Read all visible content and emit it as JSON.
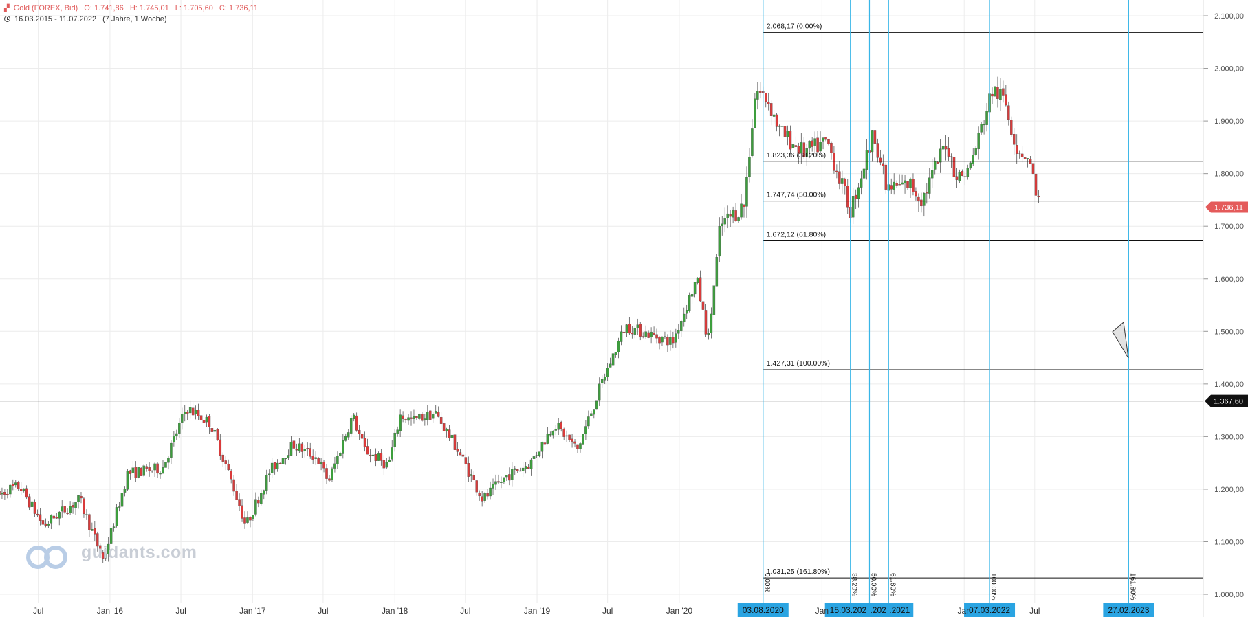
{
  "header": {
    "symbol": "Gold (FOREX, Bid)",
    "open": "O: 1.741,86",
    "high": "H: 1.745,01",
    "low": "L: 1.705,60",
    "close": "C: 1.736,11",
    "range": "16.03.2015 - 11.07.2022",
    "period": "(7 Jahre, 1 Woche)"
  },
  "watermark": "guidants.com",
  "colors": {
    "up": "#3d9e3d",
    "down": "#d93b3b",
    "fib_vertical": "#38b6e8",
    "date_label_bg": "#2aa4e2",
    "price_label": "#e45a5a",
    "grid": "#ececec"
  },
  "chart_data": {
    "type": "candlestick",
    "timeframe": "weekly",
    "date_range": [
      "16.03.2015",
      "11.07.2022"
    ],
    "ylim": [
      1000,
      2100
    ],
    "y_ticks": [
      "1.000,00",
      "1.100,00",
      "1.200,00",
      "1.300,00",
      "1.400,00",
      "1.500,00",
      "1.600,00",
      "1.700,00",
      "1.800,00",
      "1.900,00",
      "2.000,00",
      "2.100,00"
    ],
    "x_tick_labels": [
      "Jul",
      "Jan '16",
      "Jul",
      "Jan '17",
      "Jul",
      "Jan '18",
      "Jul",
      "Jan '19",
      "Jul",
      "Jan '20"
    ],
    "current_price": "1.736,11",
    "horizontal_line": {
      "price": 1367.6,
      "label": "1.367,60"
    },
    "fib_retracement": [
      {
        "price": 2068.17,
        "label": "2.068,17 (0.00%)"
      },
      {
        "price": 1823.36,
        "label": "1.823,36 (38.20%)"
      },
      {
        "price": 1747.74,
        "label": "1.747,74 (50.00%)"
      },
      {
        "price": 1672.12,
        "label": "1.672,12 (61.80%)"
      },
      {
        "price": 1427.31,
        "label": "1.427,31 (100.00%)"
      },
      {
        "price": 1031.25,
        "label": "1.031,25 (161.80%)"
      }
    ],
    "fib_time_zones": [
      {
        "label": "0.00%",
        "date": "03.08.2020"
      },
      {
        "label": "38.20%",
        "date": "15.03.2021"
      },
      {
        "label": "50.00%",
        "date": ".2021"
      },
      {
        "label": "61.80%",
        "date": ".2021"
      },
      {
        "label": "100.00%",
        "date": "07.03.2022"
      },
      {
        "label": "161.80%",
        "date": "27.02.2023"
      }
    ],
    "extra_x_labels": [
      "Jan",
      "Jan",
      "Jul"
    ],
    "series_outline": [
      [
        "2015-03",
        1185
      ],
      [
        "2015-04",
        1200
      ],
      [
        "2015-05",
        1205
      ],
      [
        "2015-07",
        1130
      ],
      [
        "2015-08",
        1150
      ],
      [
        "2015-10",
        1180
      ],
      [
        "2015-12",
        1065
      ],
      [
        "2016-02",
        1230
      ],
      [
        "2016-05",
        1240
      ],
      [
        "2016-07",
        1355
      ],
      [
        "2016-09",
        1325
      ],
      [
        "2016-10",
        1265
      ],
      [
        "2016-11",
        1200
      ],
      [
        "2016-12",
        1130
      ],
      [
        "2017-02",
        1235
      ],
      [
        "2017-04",
        1285
      ],
      [
        "2017-06",
        1260
      ],
      [
        "2017-07",
        1215
      ],
      [
        "2017-09",
        1340
      ],
      [
        "2017-10",
        1275
      ],
      [
        "2017-12",
        1245
      ],
      [
        "2018-01",
        1340
      ],
      [
        "2018-02",
        1330
      ],
      [
        "2018-04",
        1345
      ],
      [
        "2018-06",
        1270
      ],
      [
        "2018-08",
        1180
      ],
      [
        "2018-10",
        1225
      ],
      [
        "2018-12",
        1250
      ],
      [
        "2019-02",
        1325
      ],
      [
        "2019-04",
        1275
      ],
      [
        "2019-06",
        1400
      ],
      [
        "2019-08",
        1510
      ],
      [
        "2019-10",
        1495
      ],
      [
        "2019-12",
        1480
      ],
      [
        "2020-02",
        1600
      ],
      [
        "2020-03",
        1480
      ],
      [
        "2020-04",
        1700
      ],
      [
        "2020-06",
        1740
      ],
      [
        "2020-07",
        1960
      ],
      [
        "2020-08",
        1940
      ],
      [
        "2020-09",
        1880
      ],
      [
        "2020-11",
        1840
      ],
      [
        "2021-01",
        1860
      ],
      [
        "2021-03",
        1730
      ],
      [
        "2021-05",
        1880
      ],
      [
        "2021-06",
        1770
      ],
      [
        "2021-08",
        1780
      ],
      [
        "2021-09",
        1750
      ],
      [
        "2021-11",
        1860
      ],
      [
        "2021-12",
        1790
      ],
      [
        "2022-01",
        1810
      ],
      [
        "2022-03",
        1960
      ],
      [
        "2022-04",
        1940
      ],
      [
        "2022-05",
        1850
      ],
      [
        "2022-06",
        1830
      ],
      [
        "2022-07",
        1736
      ]
    ]
  }
}
